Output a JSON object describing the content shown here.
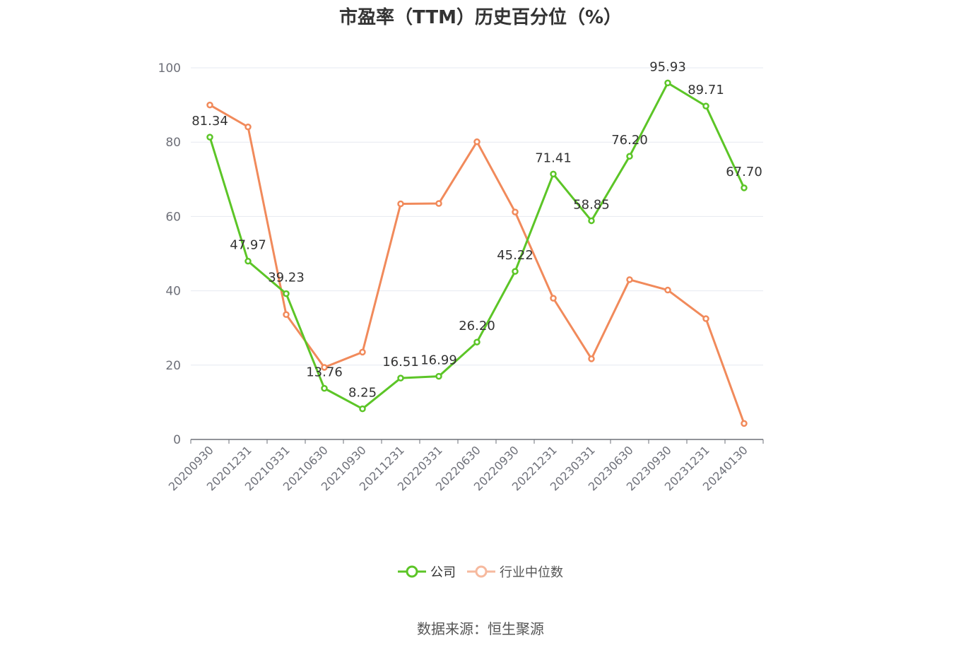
{
  "title": "市盈率（TTM）历史百分位（%）",
  "source": "数据来源：恒生聚源",
  "colors": {
    "company": "#5cc527",
    "industry": "#f18a5b",
    "grid": "#e6e9f0",
    "axis": "#6e7079"
  },
  "chart_data": {
    "type": "line",
    "x": [
      "20200930",
      "20201231",
      "20210331",
      "20210630",
      "20210930",
      "20211231",
      "20220331",
      "20220630",
      "20220930",
      "20221231",
      "20230331",
      "20230630",
      "20230930",
      "20231231",
      "20240130"
    ],
    "ylim": [
      0,
      100
    ],
    "yticks": [
      0,
      20,
      40,
      60,
      80,
      100
    ],
    "grid": true,
    "legend_position": "bottom",
    "series": [
      {
        "name": "公司",
        "values": [
          81.34,
          47.97,
          39.23,
          13.76,
          8.25,
          16.51,
          16.99,
          26.2,
          45.22,
          71.41,
          58.85,
          76.2,
          95.93,
          89.71,
          67.7
        ],
        "labels": [
          "81.34",
          "47.97",
          "39.23",
          "13.76",
          "8.25",
          "16.51",
          "16.99",
          "26.20",
          "45.22",
          "71.41",
          "58.85",
          "76.20",
          "95.93",
          "89.71",
          "67.70"
        ]
      },
      {
        "name": "行业中位数",
        "values": [
          90.0,
          84.1,
          33.6,
          19.4,
          23.5,
          63.4,
          63.5,
          80.1,
          61.2,
          38.0,
          21.7,
          43.0,
          40.2,
          32.5,
          4.3
        ]
      }
    ]
  }
}
